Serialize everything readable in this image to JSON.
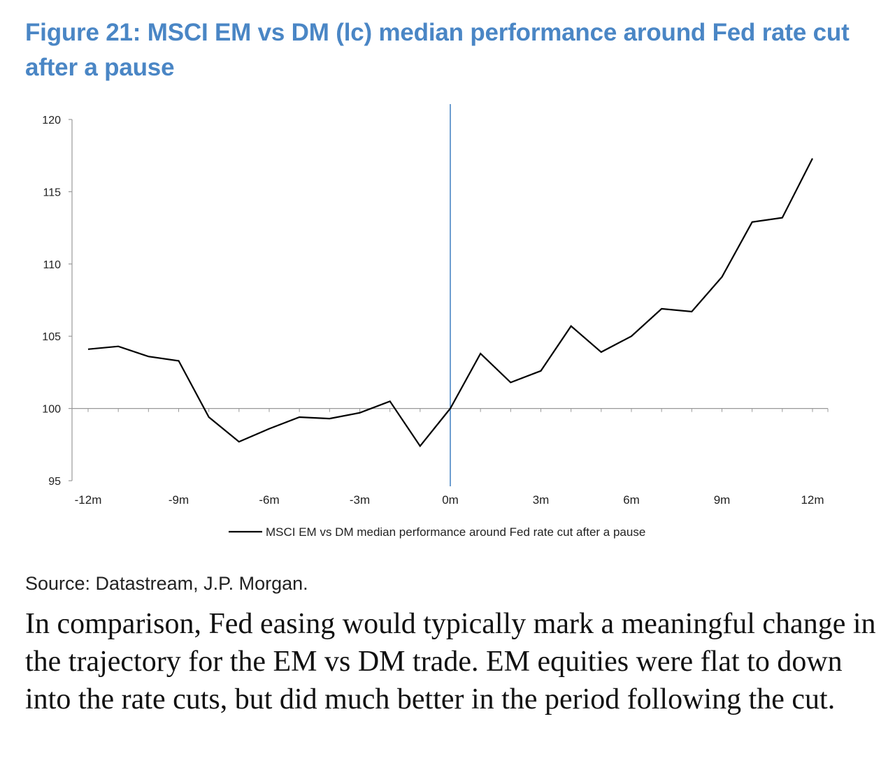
{
  "figure": {
    "title": "Figure 21: MSCI EM vs DM (lc) median performance around Fed rate cut after a pause",
    "source": "Source: Datastream, J.P. Morgan."
  },
  "body_text": "In comparison, Fed easing would typically mark a meaningful change in the trajectory for the EM vs DM trade. EM equities were flat to down into the rate cuts, but did much better in the period following the cut.",
  "chart_data": {
    "type": "line",
    "title": "Figure 21: MSCI EM vs DM (lc) median performance around Fed rate cut after a pause",
    "xlabel": "",
    "ylabel": "",
    "x_range": [
      -12,
      12
    ],
    "ylim": [
      95,
      120
    ],
    "y_ticks": [
      95,
      100,
      105,
      110,
      115,
      120
    ],
    "x_tick_labels": [
      {
        "x": -12,
        "label": "-12m"
      },
      {
        "x": -9,
        "label": "-9m"
      },
      {
        "x": -6,
        "label": "-6m"
      },
      {
        "x": -3,
        "label": "-3m"
      },
      {
        "x": 0,
        "label": "0m"
      },
      {
        "x": 3,
        "label": "3m"
      },
      {
        "x": 6,
        "label": "6m"
      },
      {
        "x": 9,
        "label": "9m"
      },
      {
        "x": 12,
        "label": "12m"
      }
    ],
    "baseline": 100,
    "vertical_marker_x": 0,
    "grid": false,
    "legend_position": "bottom",
    "series": [
      {
        "name": "MSCI EM vs DM median performance around Fed rate cut after a pause",
        "color": "#000000",
        "x": [
          -12,
          -11,
          -10,
          -9,
          -8,
          -7,
          -6,
          -5,
          -4,
          -3,
          -2,
          -1,
          0,
          1,
          2,
          3,
          4,
          5,
          6,
          7,
          8,
          9,
          10,
          11,
          12
        ],
        "values": [
          104.1,
          104.3,
          103.6,
          103.3,
          99.4,
          97.7,
          98.6,
          99.4,
          99.3,
          99.7,
          100.5,
          97.4,
          100.0,
          103.8,
          101.8,
          102.6,
          105.7,
          103.9,
          105.0,
          106.9,
          106.7,
          109.1,
          112.9,
          113.2,
          117.3
        ]
      }
    ],
    "colors": {
      "title": "#4a86c5",
      "axis": "#999999",
      "vertical_marker": "#4a86c5",
      "line": "#000000"
    }
  }
}
